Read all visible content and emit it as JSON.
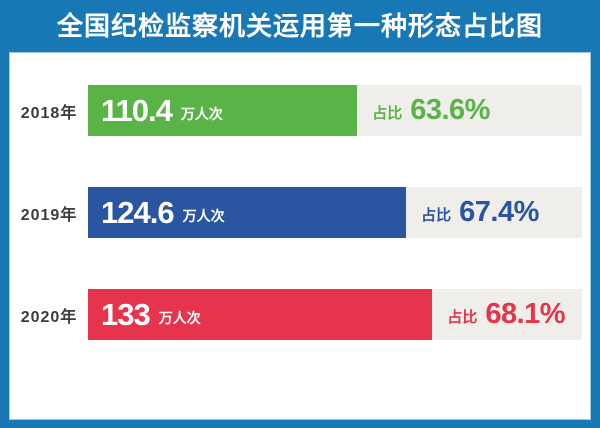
{
  "title": "全国纪检监察机关运用第一种形态占比图",
  "colors": {
    "frame_blue": "#1878B6",
    "panel_bg": "#FFFFFF",
    "track_gray": "#F0EEEA",
    "year_label_gray": "#3C3C3C",
    "bar_green": "#5AB346",
    "bar_blue": "#2A55A0",
    "bar_red": "#E5344C",
    "title_text": "#FFFFFF"
  },
  "chart_data": {
    "type": "bar",
    "orientation": "horizontal",
    "title": "全国纪检监察机关运用第一种形态占比图",
    "categories": [
      "2018年",
      "2019年",
      "2020年"
    ],
    "series": [
      {
        "name": "人次（万人次）",
        "values": [
          110.4,
          124.6,
          133
        ]
      },
      {
        "name": "占比（%）",
        "values": [
          63.6,
          67.4,
          68.1
        ]
      }
    ],
    "legend": "none",
    "grid": false,
    "rows": [
      {
        "year": "2018年",
        "value": "110.4",
        "unit": "万人次",
        "share_prefix": "占比",
        "share": "63.6%",
        "color": "#5AB346",
        "bar_width_pct": 54.5
      },
      {
        "year": "2019年",
        "value": "124.6",
        "unit": "万人次",
        "share_prefix": "占比",
        "share": "67.4%",
        "color": "#2A55A0",
        "bar_width_pct": 64.4
      },
      {
        "year": "2020年",
        "value": "133",
        "unit": "万人次",
        "share_prefix": "占比",
        "share": "68.1%",
        "color": "#E5344C",
        "bar_width_pct": 69.7
      }
    ]
  }
}
